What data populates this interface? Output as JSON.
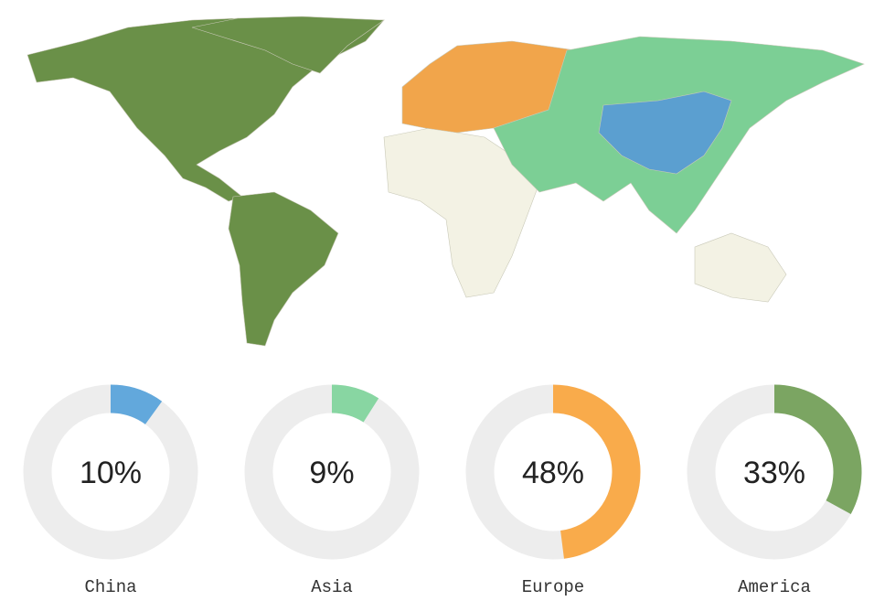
{
  "colors": {
    "track": "#ededed",
    "other_land": "#f3f2e4",
    "border": "#d8d8c8"
  },
  "chart_data": {
    "type": "pie",
    "variant": "donut",
    "items": [
      {
        "label": "China",
        "value": 10,
        "display": "10%",
        "color": "#62a8dc",
        "map_color": "#5b9fd0"
      },
      {
        "label": "Asia",
        "value": 9,
        "display": "9%",
        "color": "#88d6a2",
        "map_color": "#7ccf95"
      },
      {
        "label": "Europe",
        "value": 48,
        "display": "48%",
        "color": "#f9ab4b",
        "map_color": "#f1a54b"
      },
      {
        "label": "America",
        "value": 33,
        "display": "33%",
        "color": "#7ba562",
        "map_color": "#6a9048"
      }
    ]
  }
}
